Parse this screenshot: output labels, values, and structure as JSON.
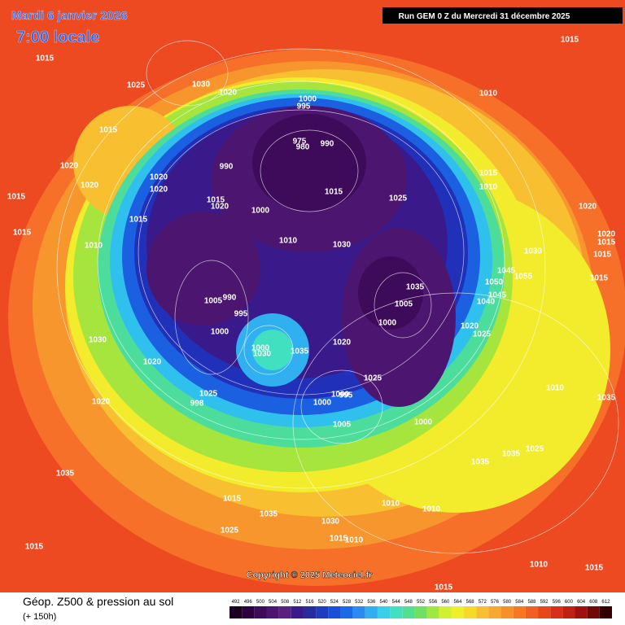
{
  "header": {
    "date": "Mardi 6 janvier 2026",
    "time": "7:00 locale",
    "run": "Run GEM 0 Z du Mercredi 31 décembre 2025"
  },
  "copyright": "Copyright © 2025 Meteociel.fr",
  "footer": {
    "title": "Géop. Z500 & pression au sol",
    "lead": "(+ 150h)"
  },
  "colorbar": {
    "values": [
      492,
      496,
      500,
      504,
      508,
      512,
      516,
      520,
      524,
      528,
      532,
      536,
      540,
      544,
      548,
      552,
      556,
      560,
      564,
      568,
      572,
      576,
      580,
      584,
      588,
      592,
      596,
      600,
      604,
      608,
      612
    ],
    "colors": [
      "#1a0020",
      "#2d0040",
      "#3e0a5a",
      "#4c1670",
      "#5a2080",
      "#3a1a8a",
      "#2a2aa0",
      "#1e3cc0",
      "#1a50d8",
      "#1a6ae8",
      "#2a8cf0",
      "#30b0f0",
      "#38d0e8",
      "#40e0c0",
      "#50e090",
      "#70e060",
      "#a0e840",
      "#d0f030",
      "#f0f028",
      "#f8d828",
      "#f8c030",
      "#f8a830",
      "#f89028",
      "#f87820",
      "#f06020",
      "#e84818",
      "#d83018",
      "#c02010",
      "#a01010",
      "#700808",
      "#300000"
    ]
  },
  "isobar_labels": [
    1015,
    1025,
    1030,
    1020,
    1000,
    995,
    1015,
    990,
    975,
    980,
    990,
    1020,
    1020,
    1020,
    1020,
    1015,
    1020,
    1000,
    1015,
    1025,
    1015,
    1015,
    1015,
    1010,
    1010,
    1030,
    1010,
    1015,
    1020,
    1030,
    1045,
    1055,
    1050,
    1045,
    1040,
    1035,
    1005,
    1000,
    1005,
    990,
    995,
    1000,
    1000,
    1030,
    1035,
    1020,
    1020,
    1025,
    1030,
    1020,
    1025,
    1010,
    1035,
    1020,
    1025,
    998,
    1000,
    1000,
    995,
    1005,
    1000,
    1025,
    1035,
    1035,
    1035,
    1015,
    1035,
    1025,
    1030,
    1015,
    1010,
    1010,
    1010,
    1015,
    1010,
    1015,
    1015,
    1020,
    1015,
    1015,
    1015,
    1015,
    1010
  ]
}
